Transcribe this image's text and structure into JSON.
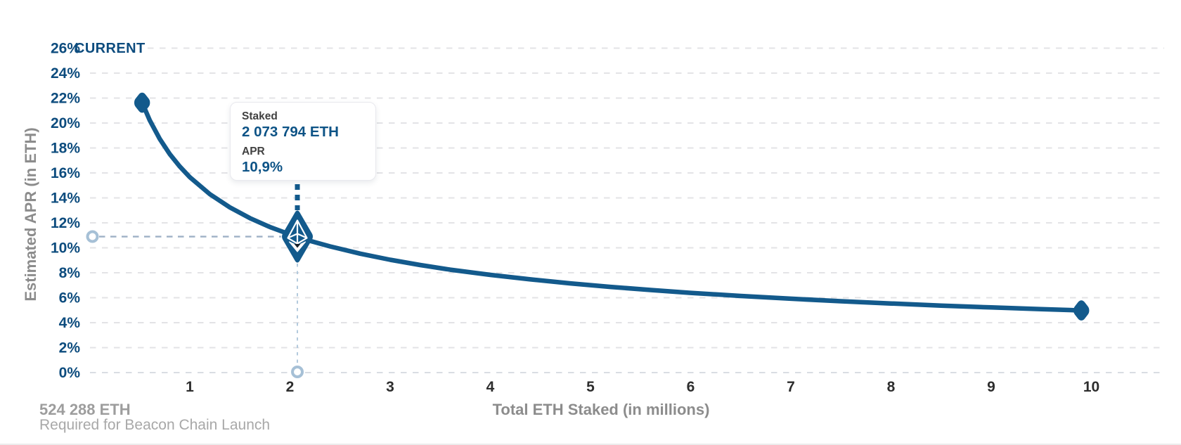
{
  "header": {
    "current_label": "CURRENT"
  },
  "axes": {
    "y_title": "Estimated APR (in ETH)",
    "x_title": "Total ETH Staked  (in millions)"
  },
  "tooltip": {
    "staked_label": "Staked",
    "staked_value": "2 073 794 ETH",
    "apr_label": "APR",
    "apr_value": "10,9%"
  },
  "footnote": {
    "genesis_eth": "524 288 ETH",
    "genesis_caption": "Required for Beacon Chain Launch"
  },
  "colors": {
    "curve_blue": "#135a8c",
    "tick_blue": "#0d4c7e",
    "x_tick_dark": "#2d2d2d",
    "grid_gray": "#e3e3e6",
    "grid_zero": "#d9dde3",
    "guide_gray_blue": "#9db0c5",
    "guide_light_blue": "#b3cadd",
    "ring_blue": "#a6c0d6",
    "tooltip_value_blue": "#0d5386",
    "title_gray": "#8c8c8c"
  },
  "chart_data": {
    "type": "line",
    "title": "",
    "xlabel": "Total ETH Staked  (in millions)",
    "ylabel": "Estimated APR (in ETH)",
    "xlim": [
      0,
      10.7
    ],
    "ylim": [
      0,
      26
    ],
    "x_ticks": [
      1,
      2,
      3,
      4,
      5,
      6,
      7,
      8,
      9,
      10
    ],
    "y_ticks_percent": [
      0,
      2,
      4,
      6,
      8,
      10,
      12,
      14,
      16,
      18,
      20,
      22,
      24,
      26
    ],
    "grid": "horizontal-dashed",
    "legend": "none",
    "series": [
      {
        "name": "Estimated APR (in ETH)",
        "points_m_apr": [
          [
            0.524,
            21.63
          ],
          [
            0.6,
            20.22
          ],
          [
            0.7,
            18.72
          ],
          [
            0.8,
            17.51
          ],
          [
            0.9,
            16.51
          ],
          [
            1.0,
            15.66
          ],
          [
            1.2,
            14.3
          ],
          [
            1.4,
            13.24
          ],
          [
            1.6,
            12.38
          ],
          [
            1.8,
            11.67
          ],
          [
            2.0,
            11.07
          ],
          [
            2.2,
            10.56
          ],
          [
            2.4,
            10.11
          ],
          [
            2.7,
            9.53
          ],
          [
            3.0,
            9.04
          ],
          [
            3.3,
            8.62
          ],
          [
            3.6,
            8.25
          ],
          [
            4.0,
            7.83
          ],
          [
            4.4,
            7.47
          ],
          [
            4.8,
            7.15
          ],
          [
            5.2,
            6.87
          ],
          [
            5.6,
            6.62
          ],
          [
            6.0,
            6.39
          ],
          [
            6.5,
            6.14
          ],
          [
            7.0,
            5.92
          ],
          [
            7.5,
            5.72
          ],
          [
            8.0,
            5.54
          ],
          [
            8.5,
            5.37
          ],
          [
            9.0,
            5.22
          ],
          [
            9.5,
            5.08
          ],
          [
            9.9,
            4.98
          ]
        ]
      }
    ],
    "endpoint_markers_m_apr": [
      [
        0.524,
        21.63
      ],
      [
        9.9,
        4.98
      ]
    ],
    "current_point": {
      "staked_millions": 2.073794,
      "apr_percent": 10.9
    },
    "annotations": {
      "current_label": "CURRENT",
      "genesis_eth": "524 288 ETH",
      "genesis_caption": "Required for Beacon Chain Launch"
    }
  }
}
